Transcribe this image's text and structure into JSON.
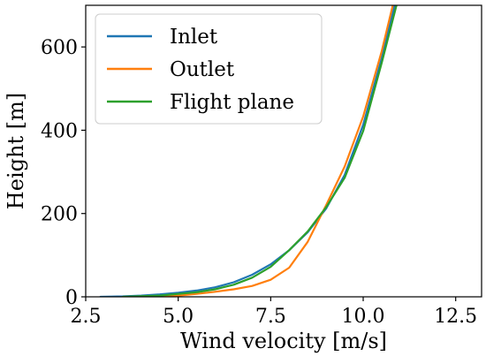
{
  "chart_data": {
    "type": "line",
    "title": "",
    "xlabel": "Wind velocity [m/s]",
    "ylabel": "Height [m]",
    "xlim": [
      2.5,
      13.2
    ],
    "ylim": [
      0,
      700
    ],
    "xticks": [
      2.5,
      5.0,
      7.5,
      10.0,
      12.5
    ],
    "xtick_labels": [
      "2.5",
      "5.0",
      "7.5",
      "10.0",
      "12.5"
    ],
    "yticks": [
      0,
      200,
      400,
      600
    ],
    "ytick_labels": [
      "0",
      "200",
      "400",
      "600"
    ],
    "grid": false,
    "legend_position": "upper-left",
    "series": [
      {
        "name": "Inlet",
        "color": "#1f77b4",
        "x": [
          2.9,
          3.5,
          4.0,
          4.5,
          5.0,
          5.5,
          6.0,
          6.5,
          7.0,
          7.5,
          8.0,
          8.5,
          9.0,
          9.5,
          10.0,
          10.5,
          10.85
        ],
        "y": [
          0,
          1,
          3,
          6,
          10,
          15,
          23,
          35,
          53,
          78,
          112,
          155,
          212,
          293,
          413,
          573,
          700
        ]
      },
      {
        "name": "Outlet",
        "color": "#ff7f0e",
        "x": [
          4.0,
          5.0,
          5.5,
          6.0,
          6.5,
          7.0,
          7.5,
          8.0,
          8.5,
          9.0,
          9.5,
          10.0,
          10.5,
          10.8
        ],
        "y": [
          0,
          3,
          7,
          12,
          18,
          26,
          41,
          70,
          132,
          220,
          313,
          433,
          590,
          700
        ]
      },
      {
        "name": "Flight plane",
        "color": "#2ca02c",
        "x": [
          3.5,
          4.5,
          5.0,
          5.5,
          6.0,
          6.5,
          7.0,
          7.5,
          8.0,
          8.5,
          9.0,
          9.5,
          10.0,
          10.5,
          10.9
        ],
        "y": [
          0,
          3,
          7,
          11,
          18,
          29,
          46,
          72,
          112,
          157,
          215,
          286,
          398,
          562,
          700
        ]
      }
    ]
  }
}
